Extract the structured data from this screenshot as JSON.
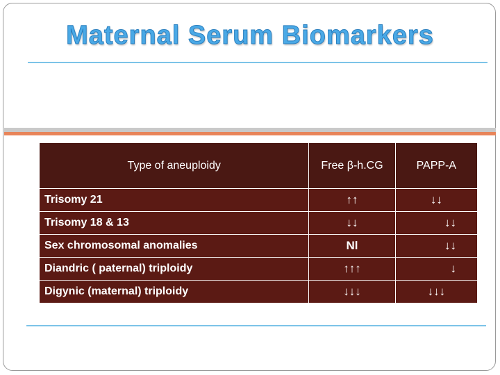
{
  "slide": {
    "title": "Maternal Serum Biomarkers"
  },
  "table": {
    "headers": {
      "type": "Type of aneuploidy",
      "hcg": "Free β-h.CG",
      "papp": "PAPP-A"
    },
    "rows": [
      {
        "label": "Trisomy 21",
        "hcg": "↑↑",
        "papp": "↓↓"
      },
      {
        "label": "Trisomy 18 & 13",
        "hcg": "↓↓",
        "papp": "↓↓"
      },
      {
        "label": "Sex chromosomal anomalies",
        "hcg": "Nl",
        "papp": "↓↓"
      },
      {
        "label": "Diandric ( paternal) triploidy",
        "hcg": "↑↑↑",
        "papp": "↓"
      },
      {
        "label": "Digynic (maternal) triploidy",
        "hcg": "↓↓↓",
        "papp": "↓↓↓"
      }
    ]
  },
  "colors": {
    "title": "#4aa9e6",
    "table_header_bg": "#4a1813",
    "table_body_bg": "#5b1a14",
    "accent_band": "#e8855a",
    "rule": "#7cc3e8"
  }
}
